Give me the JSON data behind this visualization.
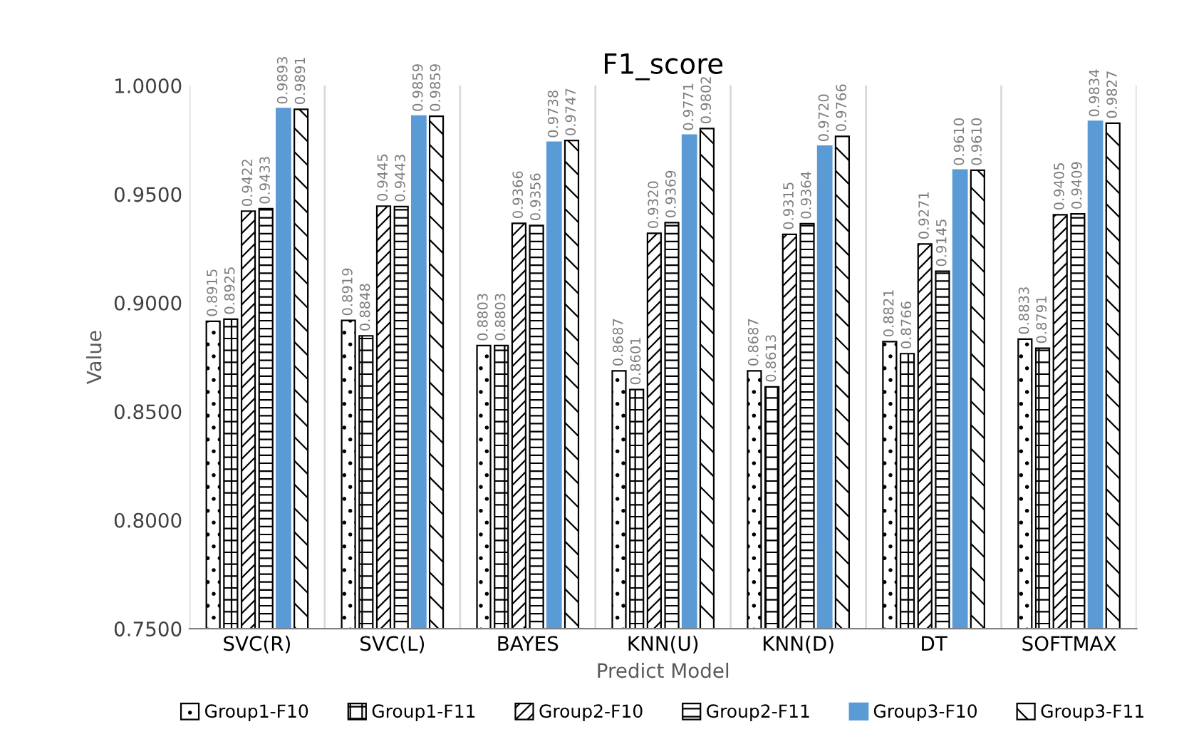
{
  "chart_data": {
    "type": "bar",
    "title": "F1_score",
    "xlabel": "Predict Model",
    "ylabel": "Value",
    "categories": [
      "SVC(R)",
      "SVC(L)",
      "BAYES",
      "KNN(U)",
      "KNN(D)",
      "DT",
      "SOFTMAX"
    ],
    "series": [
      {
        "name": "Group1-F10",
        "color": "#000000",
        "values": [
          0.8915,
          0.8919,
          0.8803,
          0.8687,
          0.8687,
          0.8821,
          0.8833
        ],
        "value_labels": [
          "0.8915",
          "0.8919",
          "0.8803",
          "0.8687",
          "0.8687",
          "0.8821",
          "0.8833"
        ]
      },
      {
        "name": "Group1-F11",
        "color": "#000000",
        "values": [
          0.8925,
          0.8848,
          0.8803,
          0.8601,
          0.8613,
          0.8766,
          0.8791
        ],
        "value_labels": [
          "0.8925",
          "0.8848",
          "0.8803",
          "0.8601",
          "0.8613",
          "0.8766",
          "0.8791"
        ]
      },
      {
        "name": "Group2-F10",
        "color": "#000000",
        "values": [
          0.9422,
          0.9445,
          0.9366,
          0.932,
          0.9315,
          0.9271,
          0.9405
        ],
        "value_labels": [
          "0.9422",
          "0.9445",
          "0.9366",
          "0.9320",
          "0.9315",
          "0.9271",
          "0.9405"
        ]
      },
      {
        "name": "Group2-F11",
        "color": "#000000",
        "values": [
          0.9433,
          0.9443,
          0.9356,
          0.9369,
          0.9364,
          0.9145,
          0.9409
        ],
        "value_labels": [
          "0.9433",
          "0.9443",
          "0.9356",
          "0.9369",
          "0.9364",
          "0.9145",
          "0.9409"
        ]
      },
      {
        "name": "Group3-F10",
        "color": "#5b9bd5",
        "values": [
          0.9893,
          0.9859,
          0.9738,
          0.9771,
          0.972,
          0.961,
          0.9834
        ],
        "value_labels": [
          "0.9893",
          "0.9859",
          "0.9738",
          "0.9771",
          "0.9720",
          "0.9610",
          "0.9834"
        ]
      },
      {
        "name": "Group3-F11",
        "color": "#000000",
        "values": [
          0.9891,
          0.9859,
          0.9747,
          0.9802,
          0.9766,
          0.961,
          0.9827
        ],
        "value_labels": [
          "0.9891",
          "0.9859",
          "0.9747",
          "0.9802",
          "0.9766",
          "0.9610",
          "0.9827"
        ]
      }
    ],
    "ylim": [
      0.75,
      1.0
    ],
    "yticks": [
      {
        "value": 0.75,
        "label": "0.7500"
      },
      {
        "value": 0.8,
        "label": "0.8000"
      },
      {
        "value": 0.85,
        "label": "0.8500"
      },
      {
        "value": 0.9,
        "label": "0.9000"
      },
      {
        "value": 0.95,
        "label": "0.9500"
      },
      {
        "value": 1.0,
        "label": "1.0000"
      }
    ],
    "grid": "x",
    "legend": "bottom"
  }
}
